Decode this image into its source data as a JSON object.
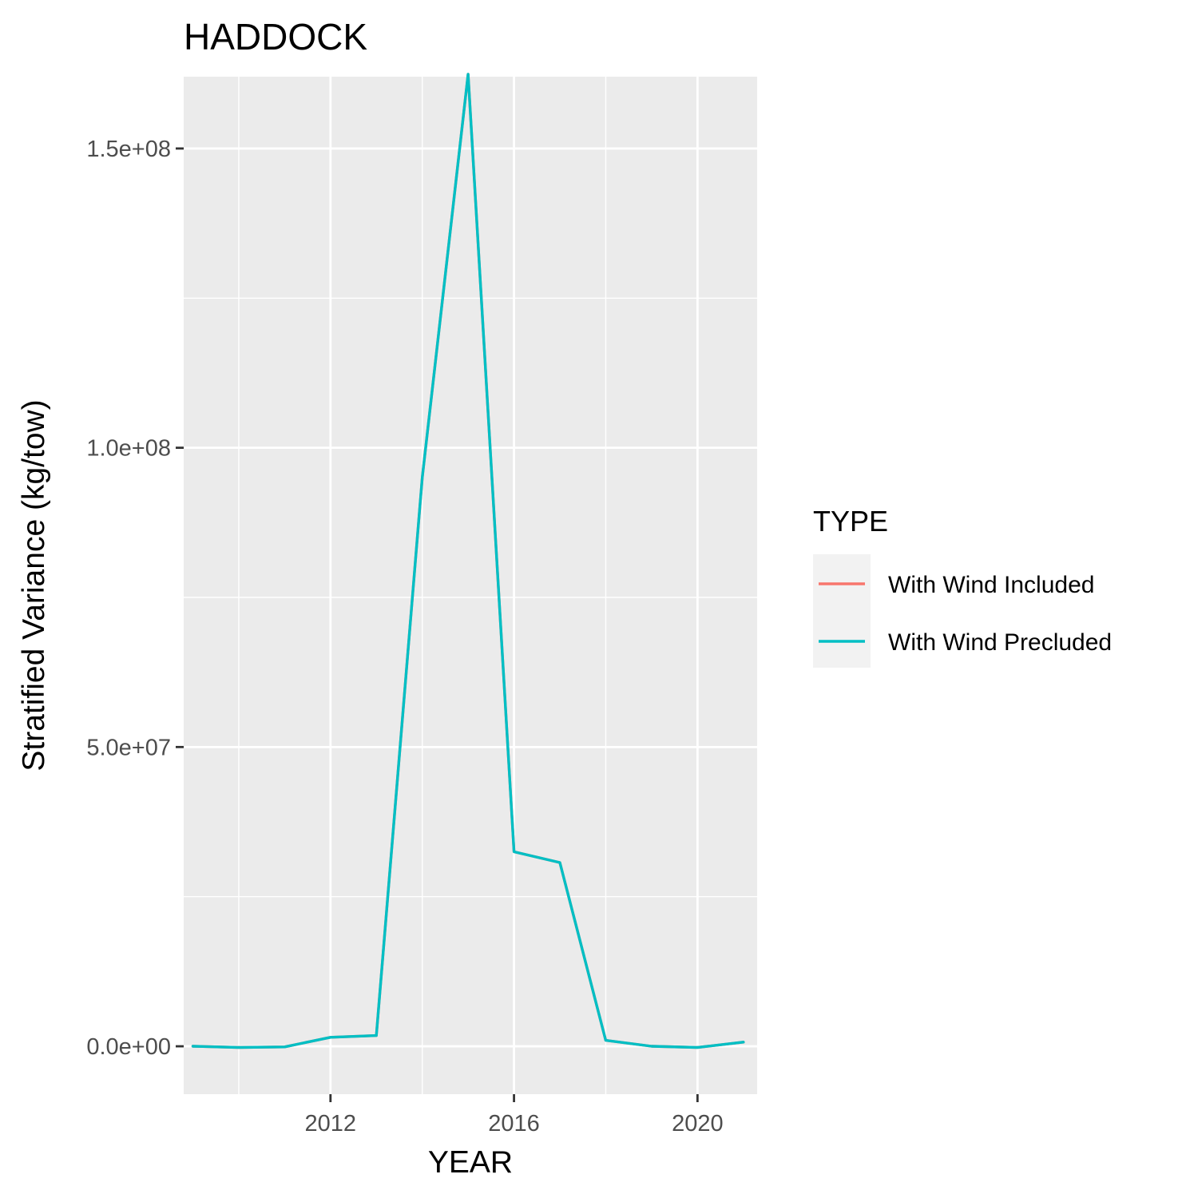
{
  "chart_data": {
    "type": "line",
    "title": "HADDOCK",
    "xlabel": "YEAR",
    "ylabel": "Stratified Variance (kg/tow)",
    "xlim": [
      2008.8,
      2021.3
    ],
    "ylim": [
      -8000000,
      162000000
    ],
    "x_ticks": [
      2012,
      2016,
      2020
    ],
    "x_tick_labels": [
      "2012",
      "2016",
      "2020"
    ],
    "x_minor": [
      2010,
      2014,
      2018
    ],
    "y_ticks": [
      0,
      50000000,
      100000000,
      150000000
    ],
    "y_tick_labels": [
      "0.0e+00",
      "5.0e+07",
      "1.0e+08",
      "1.5e+08"
    ],
    "y_minor": [
      25000000,
      75000000,
      125000000
    ],
    "legend": {
      "title": "TYPE",
      "position": "right"
    },
    "x": [
      2009,
      2010,
      2011,
      2012,
      2013,
      2014,
      2015,
      2016,
      2017,
      2018,
      2019,
      2020,
      2021
    ],
    "series": [
      {
        "name": "With Wind Included",
        "color": "#F8766D",
        "values": [
          0,
          -200000,
          -100000,
          1500000,
          1800000,
          95000000,
          162400000,
          32500000,
          30700000,
          1000000,
          0,
          -200000,
          700000
        ]
      },
      {
        "name": "With Wind Precluded",
        "color": "#00BFC4",
        "values": [
          0,
          -200000,
          -100000,
          1500000,
          1800000,
          95000000,
          162400000,
          32500000,
          30700000,
          1000000,
          0,
          -200000,
          700000
        ]
      }
    ]
  }
}
